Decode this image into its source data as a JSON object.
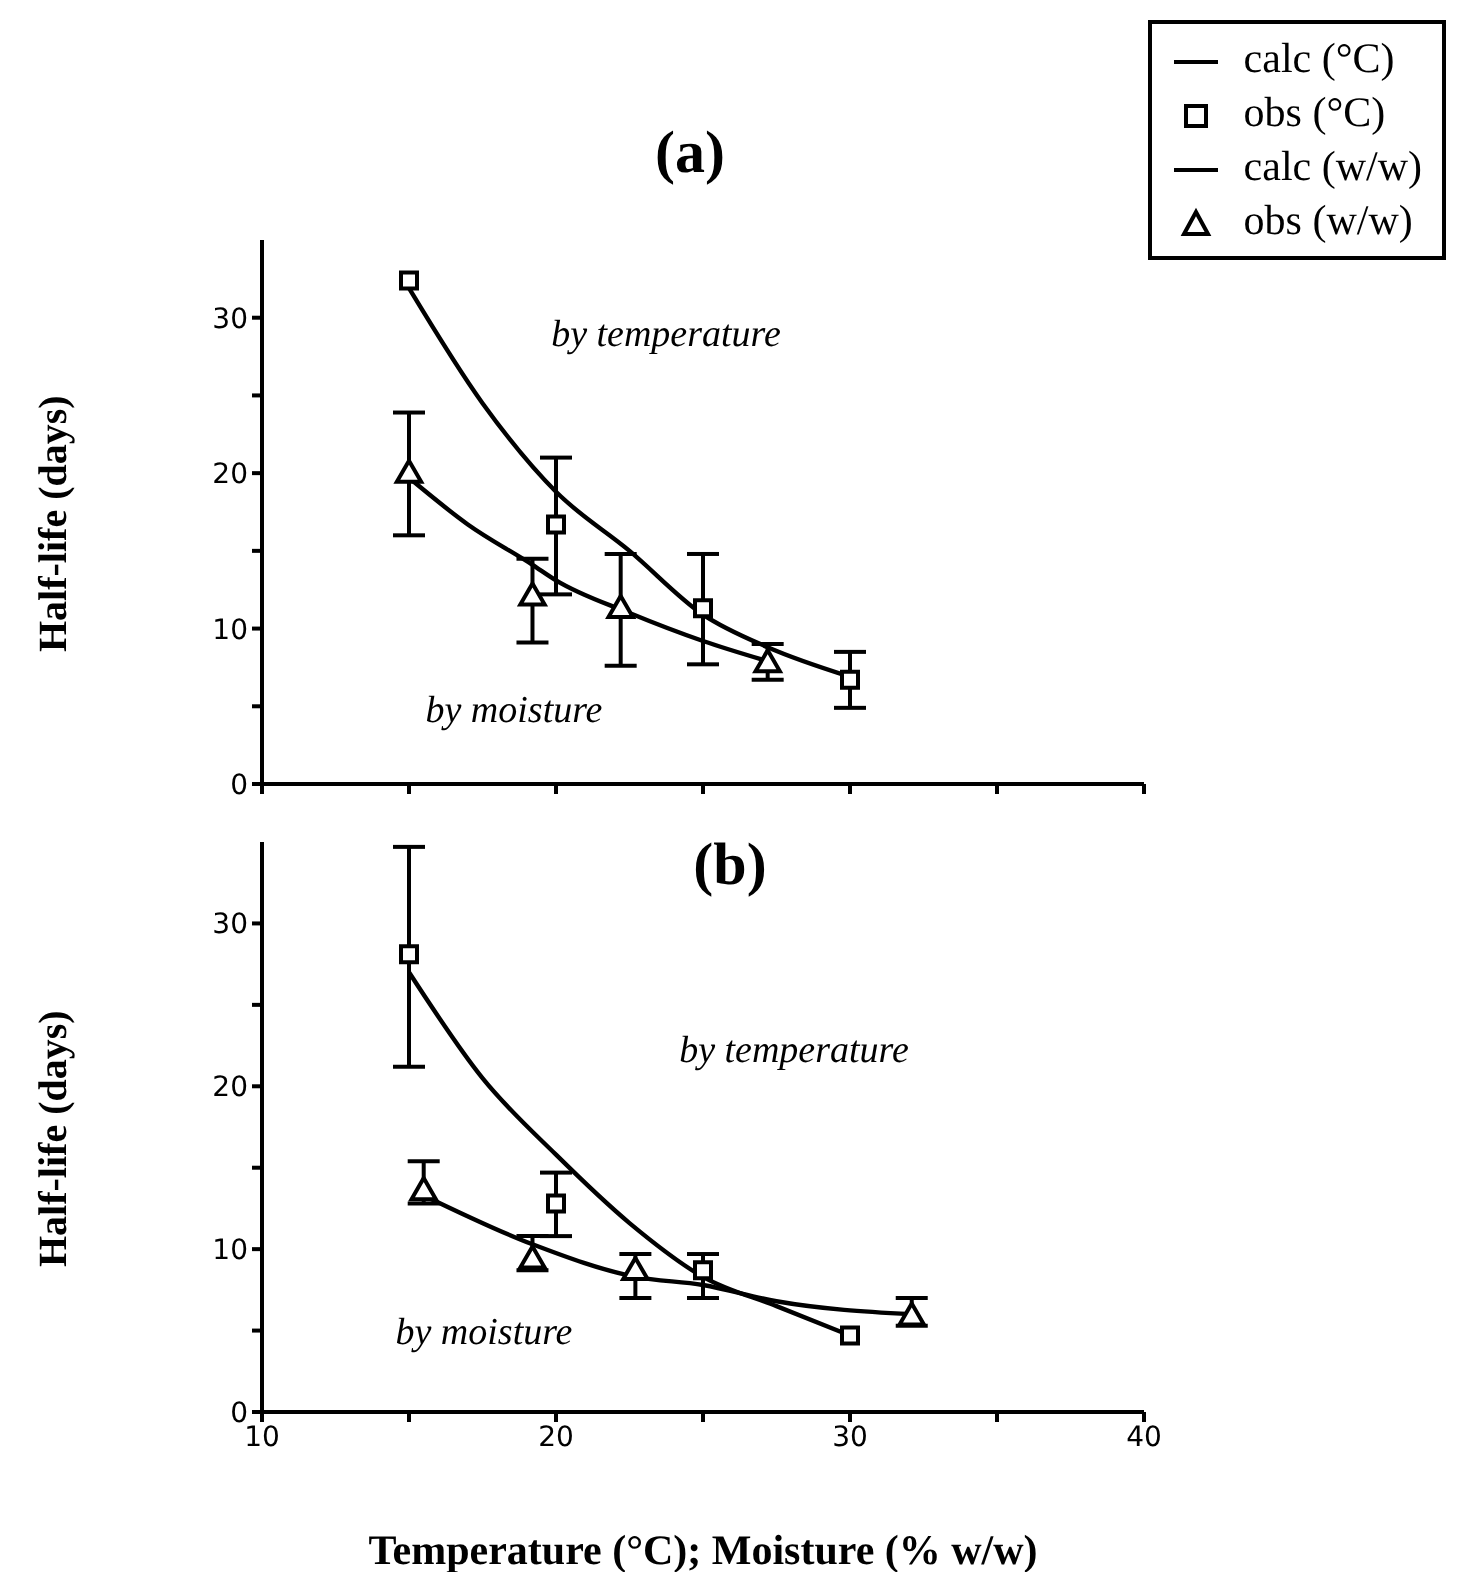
{
  "chart_data": [
    {
      "type": "line",
      "title": "(a)",
      "ylabel": "Half-life (days)",
      "xlim": [
        10,
        40
      ],
      "xticks": [
        {
          "value": 10,
          "label": null
        },
        {
          "value": 15,
          "label": null
        },
        {
          "value": 20,
          "label": null
        },
        {
          "value": 25,
          "label": null
        },
        {
          "value": 30,
          "label": null
        },
        {
          "value": 35,
          "label": null
        },
        {
          "value": 40,
          "label": null
        }
      ],
      "ylim": [
        0,
        35
      ],
      "yticks": [
        0,
        {
          "value": 5,
          "label": null
        },
        10,
        {
          "value": 15,
          "label": null
        },
        20,
        {
          "value": 25,
          "label": null
        },
        30
      ],
      "tick_labels": "y",
      "legend": "top right",
      "annotations": [
        "by temperature",
        "by moisture"
      ],
      "series": [
        {
          "name": "calc (°C)",
          "color": "#000000",
          "marker": "none",
          "x": [
            15,
            17.5,
            20,
            22.5,
            25,
            27.2,
            30
          ],
          "values": [
            31.9,
            24.5,
            18.8,
            15,
            10.9,
            8.8,
            6.9
          ]
        },
        {
          "name": "obs (°C)",
          "type": "scatter",
          "color": "#000000",
          "marker": "square",
          "x": [
            15,
            20,
            25,
            30
          ],
          "values": [
            32.4,
            16.7,
            11.3,
            6.7
          ],
          "errors": [
            null,
            [
              12.2,
              21
            ],
            [
              7.7,
              14.8
            ],
            [
              4.9,
              8.5
            ]
          ]
        },
        {
          "name": "calc (w/w)",
          "color": "#000000",
          "marker": "none",
          "x": [
            15,
            17,
            19.2,
            20,
            22.5,
            25,
            27.2
          ],
          "values": [
            19.7,
            16.7,
            14.1,
            13.1,
            11,
            9.2,
            7.9
          ]
        },
        {
          "name": "obs (w/w)",
          "type": "scatter",
          "color": "#000000",
          "marker": "triangle",
          "x": [
            15,
            19.2,
            22.2,
            27.2
          ],
          "values": [
            19.9,
            12,
            11.2,
            7.7
          ],
          "errors": [
            [
              16,
              23.9
            ],
            [
              9.1,
              14.5
            ],
            [
              7.6,
              14.8
            ],
            [
              6.7,
              9
            ]
          ]
        }
      ]
    },
    {
      "type": "line",
      "title": "(b)",
      "ylabel": "Half-life (days)",
      "xlabel": "Temperature (°C); Moisture (% w/w)",
      "xlim": [
        10,
        40
      ],
      "xticks": [
        10,
        {
          "value": 15,
          "label": null
        },
        20,
        {
          "value": 25,
          "label": null
        },
        30,
        {
          "value": 35,
          "label": null
        },
        40
      ],
      "ylim": [
        0,
        35
      ],
      "yticks": [
        0,
        {
          "value": 5,
          "label": null
        },
        10,
        {
          "value": 15,
          "label": null
        },
        20,
        {
          "value": 25,
          "label": null
        },
        30
      ],
      "annotations": [
        "by temperature",
        "by moisture"
      ],
      "series": [
        {
          "color": "#000000",
          "marker": "none",
          "x": [
            15,
            17.5,
            20,
            22.5,
            25,
            27.5,
            30
          ],
          "values": [
            27,
            20.5,
            15.8,
            11.6,
            8.3,
            6.5,
            4.7
          ]
        },
        {
          "type": "scatter",
          "color": "#000000",
          "marker": "square",
          "x": [
            15,
            20,
            25,
            30
          ],
          "values": [
            28.1,
            12.8,
            8.7,
            4.7
          ],
          "errors": [
            [
              21.2,
              34.7
            ],
            [
              10.8,
              14.7
            ],
            [
              7,
              9.7
            ],
            null
          ]
        },
        {
          "color": "#000000",
          "marker": "none",
          "x": [
            15.5,
            19.2,
            22.7,
            25,
            27.5,
            32.1
          ],
          "values": [
            13.3,
            10.3,
            8.3,
            7.8,
            6.8,
            6
          ]
        },
        {
          "type": "scatter",
          "color": "#000000",
          "marker": "triangle",
          "x": [
            15.5,
            19.2,
            22.7,
            32.1
          ],
          "values": [
            13.5,
            9.3,
            8.6,
            5.8
          ],
          "errors": [
            [
              12.8,
              15.4
            ],
            [
              8.7,
              10.8
            ],
            [
              7,
              9.7
            ],
            [
              5.3,
              7
            ]
          ]
        }
      ]
    }
  ]
}
